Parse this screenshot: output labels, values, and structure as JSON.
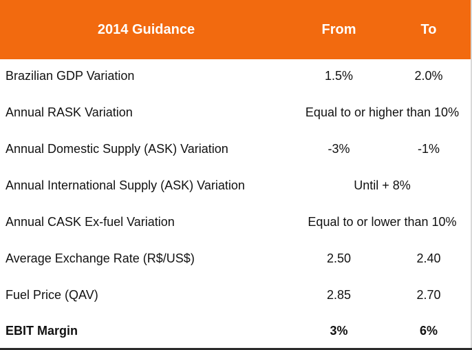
{
  "header": {
    "title": "2014 Guidance",
    "from": "From",
    "to": "To"
  },
  "rows": [
    {
      "label": "Brazilian GDP Variation",
      "from": "1.5%",
      "to": "2.0%"
    },
    {
      "label": "Annual RASK Variation",
      "span": "Equal to or higher than 10%"
    },
    {
      "label": "Annual Domestic Supply (ASK) Variation",
      "from": "-3%",
      "to": "-1%"
    },
    {
      "label": "Annual International Supply (ASK) Variation",
      "span": "Until + 8%"
    },
    {
      "label": "Annual CASK Ex-fuel Variation",
      "span": "Equal to or lower than 10%"
    },
    {
      "label": "Average Exchange Rate (R$/US$)",
      "from": "2.50",
      "to": "2.40"
    },
    {
      "label": "Fuel Price (QAV)",
      "from": "2.85",
      "to": "2.70"
    },
    {
      "label": "EBIT Margin",
      "from": "3%",
      "to": "6%"
    }
  ],
  "colors": {
    "header_bg": "#f26a0f",
    "header_text": "#ffffff"
  }
}
